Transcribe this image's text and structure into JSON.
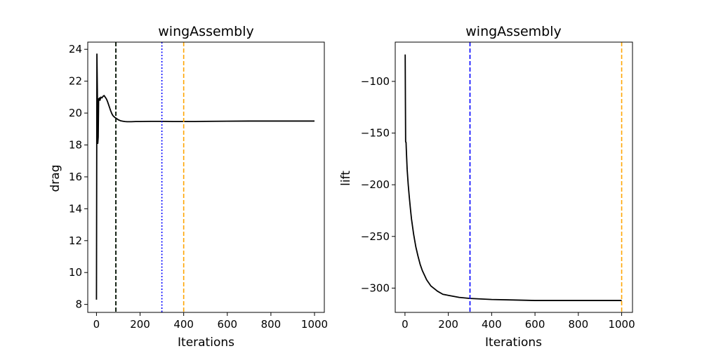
{
  "chart_data": [
    {
      "type": "line",
      "title": "wingAssembly",
      "xlabel": "Iterations",
      "ylabel": "drag",
      "xlim": [
        -40,
        1045
      ],
      "ylim": [
        7.5,
        24.45
      ],
      "xticks": [
        0,
        200,
        400,
        600,
        800,
        1000
      ],
      "xtick_labels": [
        "0",
        "200",
        "400",
        "600",
        "800",
        "1000"
      ],
      "yticks": [
        8,
        10,
        12,
        14,
        16,
        18,
        20,
        22,
        24
      ],
      "ytick_labels": [
        "8",
        "10",
        "12",
        "14",
        "16",
        "18",
        "20",
        "22",
        "24"
      ],
      "grid": false,
      "series": [
        {
          "color": "#000000",
          "x": [
            0,
            2,
            4,
            6,
            8,
            10,
            12,
            14,
            16,
            18,
            20,
            25,
            30,
            35,
            40,
            45,
            50,
            55,
            60,
            65,
            70,
            75,
            80,
            85,
            90,
            95,
            100,
            110,
            120,
            130,
            140,
            150,
            160,
            180,
            200,
            250,
            300,
            350,
            400,
            450,
            500,
            600,
            700,
            800,
            900,
            1000
          ],
          "y": [
            8.3,
            23.7,
            21.5,
            18.1,
            18.5,
            20.9,
            20.9,
            20.95,
            20.8,
            20.9,
            21.0,
            20.95,
            21.05,
            21.1,
            21.0,
            20.9,
            20.75,
            20.55,
            20.35,
            20.15,
            19.98,
            19.85,
            19.78,
            19.72,
            19.68,
            19.63,
            19.58,
            19.52,
            19.49,
            19.47,
            19.46,
            19.46,
            19.46,
            19.47,
            19.47,
            19.48,
            19.48,
            19.47,
            19.47,
            19.47,
            19.48,
            19.49,
            19.5,
            19.5,
            19.5,
            19.5
          ]
        }
      ],
      "vlines": [
        {
          "x": 89,
          "color": "#008000",
          "style": "dashed"
        },
        {
          "x": 89,
          "color": "#000000",
          "style": "dashed"
        },
        {
          "x": 300,
          "color": "#0000ff",
          "style": "dotted"
        },
        {
          "x": 400,
          "color": "#ffa500",
          "style": "dashed"
        }
      ]
    },
    {
      "type": "line",
      "title": "wingAssembly",
      "xlabel": "Iterations",
      "ylabel": "lift",
      "xlim": [
        -45,
        1050
      ],
      "ylim": [
        -323.5,
        -62
      ],
      "xticks": [
        0,
        200,
        400,
        600,
        800,
        1000
      ],
      "xtick_labels": [
        "0",
        "200",
        "400",
        "600",
        "800",
        "1000"
      ],
      "yticks": [
        -100,
        -150,
        -200,
        -250,
        -300
      ],
      "ytick_labels": [
        "−100",
        "−150",
        "−200",
        "−250",
        "−300"
      ],
      "grid": false,
      "series": [
        {
          "color": "#000000",
          "x": [
            1,
            2,
            3,
            4,
            5,
            6,
            8,
            10,
            15,
            20,
            25,
            30,
            40,
            50,
            60,
            70,
            80,
            100,
            120,
            150,
            175,
            200,
            250,
            300,
            350,
            400,
            500,
            600,
            700,
            800,
            900,
            1000
          ],
          "y": [
            -74,
            -120,
            -158,
            -159,
            -159,
            -165,
            -175,
            -185,
            -200,
            -212,
            -223,
            -233,
            -248,
            -260,
            -269,
            -277,
            -283,
            -292,
            -298,
            -303,
            -306,
            -307,
            -309,
            -310,
            -310.5,
            -311,
            -311.5,
            -312,
            -312,
            -312,
            -312,
            -312
          ]
        }
      ],
      "vlines": [
        {
          "x": 300,
          "color": "#0000ff",
          "style": "dashed"
        },
        {
          "x": 1000,
          "color": "#ffa500",
          "style": "dashed"
        }
      ]
    }
  ]
}
